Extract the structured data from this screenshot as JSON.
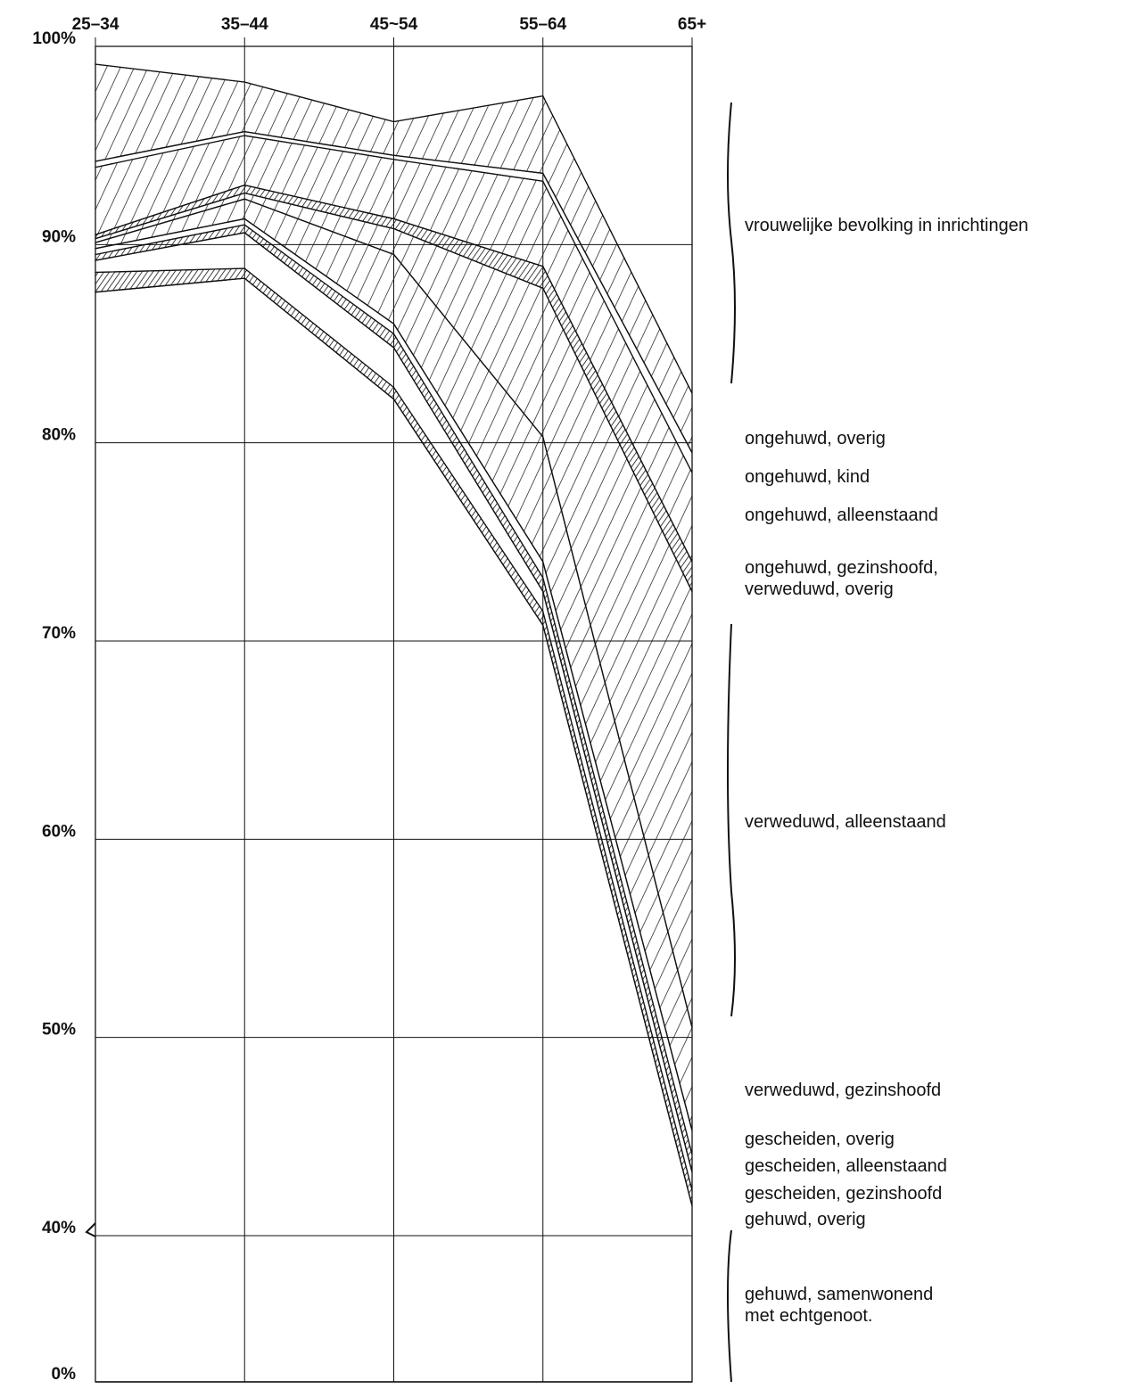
{
  "chart_data": {
    "type": "stacked_area",
    "categories": [
      "25–34",
      "35–44",
      "45~54",
      "55–64",
      "65+"
    ],
    "ylim": [
      0,
      100
    ],
    "yticks": [
      {
        "value": 0,
        "label": "0%"
      },
      {
        "value": 40,
        "label": "40%"
      },
      {
        "value": 50,
        "label": "50%"
      },
      {
        "value": 60,
        "label": "60%"
      },
      {
        "value": 70,
        "label": "70%"
      },
      {
        "value": 80,
        "label": "80%"
      },
      {
        "value": 90,
        "label": "90%"
      },
      {
        "value": 100,
        "label": "100%"
      }
    ],
    "grid": true,
    "color": "#111111",
    "series": [
      {
        "name": "gehuwd, samenwonend met echtgenoot.",
        "pattern": "none",
        "values": [
          87.6,
          88.3,
          82.2,
          70.8,
          41.5
        ]
      },
      {
        "name": "gehuwd, overig",
        "pattern": "dense",
        "values": [
          1.0,
          0.5,
          0.6,
          0.7,
          0.8
        ]
      },
      {
        "name": "gescheiden, gezinshoofd",
        "pattern": "none",
        "values": [
          0.6,
          1.8,
          2.0,
          1.0,
          0.9
        ]
      },
      {
        "name": "gescheiden, alleenstaand",
        "pattern": "dense",
        "values": [
          0.3,
          0.4,
          0.7,
          0.7,
          0.9
        ]
      },
      {
        "name": "gescheiden, overig",
        "pattern": "none",
        "values": [
          0.3,
          0.3,
          0.5,
          0.8,
          1.2
        ]
      },
      {
        "name": "verweduwd, gezinshoofd",
        "pattern": "hatch",
        "values": [
          0.3,
          1.0,
          3.5,
          6.3,
          5.2
        ]
      },
      {
        "name": "verweduwd, alleenstaand",
        "pattern": "hatch",
        "values": [
          0.2,
          0.3,
          1.3,
          7.5,
          22.0
        ]
      },
      {
        "name": "ongehuwd, gezinshoofd, verweduwd, overig",
        "pattern": "dense",
        "values": [
          0.2,
          0.4,
          0.5,
          1.1,
          1.5
        ]
      },
      {
        "name": "ongehuwd, alleenstaand",
        "pattern": "hatch",
        "values": [
          3.4,
          2.5,
          3.0,
          4.3,
          4.5
        ]
      },
      {
        "name": "ongehuwd, kind",
        "pattern": "none",
        "values": [
          0.3,
          0.2,
          0.2,
          0.4,
          1.0
        ]
      },
      {
        "name": "ongehuwd, overig",
        "pattern": "hatch",
        "values": [
          4.9,
          2.5,
          1.7,
          3.9,
          3.0
        ]
      },
      {
        "name": "vrouwelijke bevolking in inrichtingen",
        "pattern": "none",
        "values": [
          0.9,
          1.8,
          3.8,
          2.5,
          17.5
        ]
      }
    ]
  }
}
